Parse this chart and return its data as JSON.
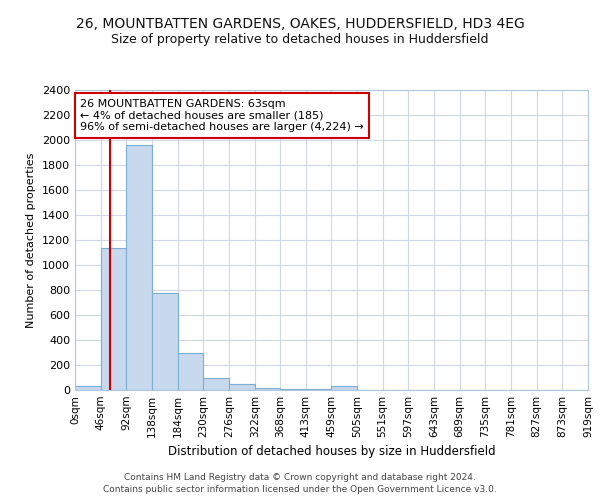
{
  "title_line1": "26, MOUNTBATTEN GARDENS, OAKES, HUDDERSFIELD, HD3 4EG",
  "title_line2": "Size of property relative to detached houses in Huddersfield",
  "xlabel": "Distribution of detached houses by size in Huddersfield",
  "ylabel": "Number of detached properties",
  "bin_labels": [
    "0sqm",
    "46sqm",
    "92sqm",
    "138sqm",
    "184sqm",
    "230sqm",
    "276sqm",
    "322sqm",
    "368sqm",
    "413sqm",
    "459sqm",
    "505sqm",
    "551sqm",
    "597sqm",
    "643sqm",
    "689sqm",
    "735sqm",
    "781sqm",
    "827sqm",
    "873sqm",
    "919sqm"
  ],
  "bar_values": [
    35,
    1140,
    1960,
    775,
    295,
    100,
    45,
    20,
    10,
    8,
    35,
    0,
    0,
    0,
    0,
    0,
    0,
    0,
    0,
    0
  ],
  "bar_color": "#c8d8ed",
  "bar_edge_color": "#7bafd4",
  "annotation_text": "26 MOUNTBATTEN GARDENS: 63sqm\n← 4% of detached houses are smaller (185)\n96% of semi-detached houses are larger (4,224) →",
  "annotation_box_color": "#ffffff",
  "annotation_box_edge_color": "#cc0000",
  "property_size_sqm": 63,
  "ylim": [
    0,
    2400
  ],
  "yticks": [
    0,
    200,
    400,
    600,
    800,
    1000,
    1200,
    1400,
    1600,
    1800,
    2000,
    2200,
    2400
  ],
  "footer_line1": "Contains HM Land Registry data © Crown copyright and database right 2024.",
  "footer_line2": "Contains public sector information licensed under the Open Government Licence v3.0.",
  "bg_color": "#ffffff",
  "plot_bg_color": "#ffffff",
  "grid_color": "#d0d8e8"
}
